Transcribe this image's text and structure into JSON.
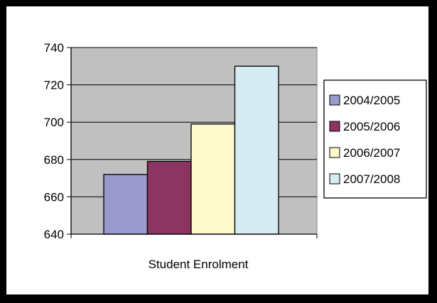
{
  "chart_data": {
    "type": "bar",
    "categories": [
      "Student Enrolment"
    ],
    "series": [
      {
        "name": "2004/2005",
        "values": [
          672
        ],
        "color": "#9999cc"
      },
      {
        "name": "2005/2006",
        "values": [
          679
        ],
        "color": "#8b3560"
      },
      {
        "name": "2006/2007",
        "values": [
          699
        ],
        "color": "#fdfacc"
      },
      {
        "name": "2007/2008",
        "values": [
          730
        ],
        "color": "#d6ecf2"
      }
    ],
    "title": "",
    "xlabel": "Student Enrolment",
    "ylabel": "",
    "ylim": [
      640,
      740
    ],
    "yticks": [
      640,
      660,
      680,
      700,
      720,
      740
    ],
    "grid": true,
    "legend": "right",
    "plot_background": "#c0c0c0"
  }
}
